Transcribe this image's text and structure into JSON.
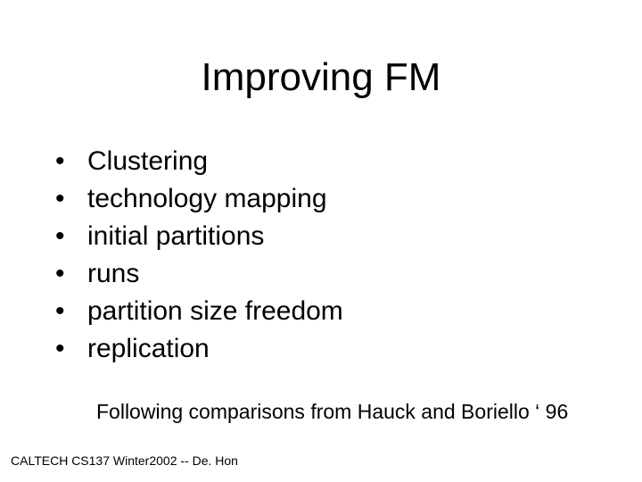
{
  "title": "Improving FM",
  "bullets": {
    "items": [
      "Clustering",
      "technology mapping",
      "initial partitions",
      "runs",
      "partition size freedom",
      "replication"
    ]
  },
  "subtext": "Following comparisons from Hauck and Boriello ‘ 96",
  "footer": "CALTECH CS137 Winter2002 -- De. Hon",
  "style": {
    "background_color": "#ffffff",
    "text_color": "#000000",
    "title_fontsize": 44,
    "bullet_fontsize": 30,
    "subtext_fontsize": 23,
    "footer_fontsize": 14,
    "font_family": "Arial"
  }
}
